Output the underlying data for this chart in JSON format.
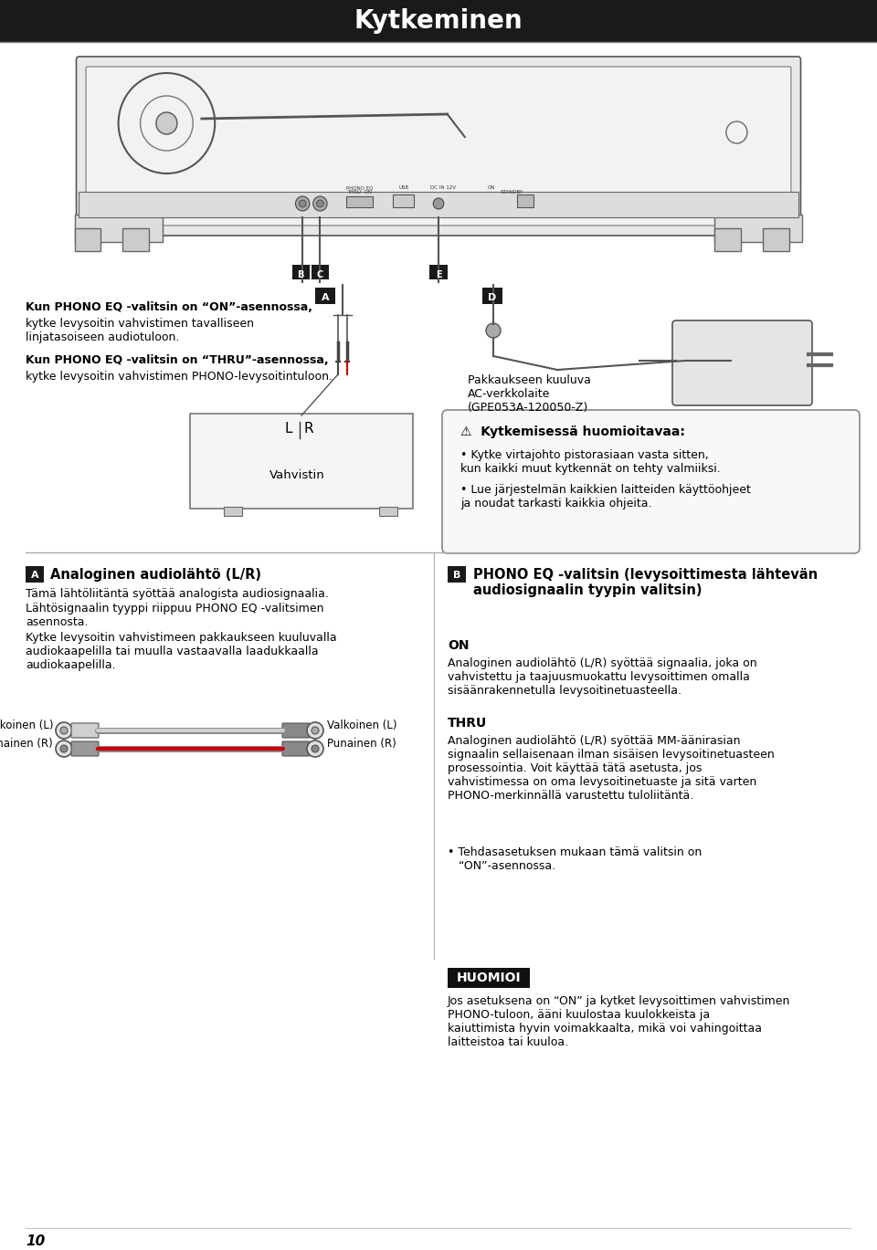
{
  "title": "Kytkeminen",
  "title_bg": "#1a1a1a",
  "title_color": "#ffffff",
  "title_fontsize": 20,
  "page_bg": "#ffffff",
  "page_number": "10",
  "text_on_bold": "Kun PHONO EQ -valitsin on “ON”-asennossa,",
  "text_on_normal": "kytke levysoitin vahvistimen tavalliseen\nlinjatasoiseen audiotuloon.",
  "text_thru_bold": "Kun PHONO EQ -valitsin on “THRU”-asennossa,",
  "text_thru_normal": "kytke levysoitin vahvistimen PHONO-levysoitintuloon.",
  "ac_text": "Pakkaukseen kuuluva\nAC-verkkolaite\n(GPE053A-120050-Z)",
  "warning_title": "⚠  Kytkemisessä huomioitavaa:",
  "warning_bullet1": "Kytke virtajohto pistorasiaan vasta sitten,\nkun kaikki muut kytkennät on tehty valmiiksi.",
  "warning_bullet2": "Lue järjestelmän kaikkien laitteiden käyttöohjeet\nja noudat tarkasti kaikkia ohjeita.",
  "vahvistin_label": "Vahvistin",
  "section_A_title": "Analoginen audiolähtö (L/R)",
  "section_A_text1": "Tämä lähtöliitäntä syöttää analogista audiosignaalia.",
  "section_A_text2": "Lähtösignaalin tyyppi riippuu PHONO EQ -valitsimen\nasennosta.",
  "section_A_text3": "Kytke levysoitin vahvistimeen pakkaukseen kuuluvalla\naudiokaapelilla tai muulla vastaavalla laadukkaalla\naudiokaapelilla.",
  "cable_left_white": "Valkoinen (L)",
  "cable_left_red": "Punainen (R)",
  "cable_right_white": "Valkoinen (L)",
  "cable_right_red": "Punainen (R)",
  "section_B_title": "PHONO EQ -valitsin (levysoittimesta lähtevän\naudiosignaalin tyypin valitsin)",
  "section_B_on_title": "ON",
  "section_B_on_text": "Analoginen audiolähtö (L/R) syöttää signaalia, joka on\nvahvistettu ja taajuusmuokattu levysoittimen omalla\nsisäänrakennetulla levysoitinetuasteella.",
  "section_B_thru_title": "THRU",
  "section_B_thru_text": "Analoginen audiolähtö (L/R) syöttää MM-äänirasian\nsignaalin sellaisenaan ilman sisäisen levysoitinetuasteen\nprosessointia. Voit käyttää tätä asetusta, jos\nvahvistimessa on oma levysoitinetuaste ja sitä varten\nPHONO-merkinnällä varustettu tuloliitäntä.",
  "section_B_thru_bullet": "Tehdasasetuksen mukaan tämä valitsin on\n   “ON”-asennossa.",
  "huomio_title": "HUOMIOI",
  "huomio_text": "Jos asetuksena on “ON” ja kytket levysoittimen vahvistimen\nPHONO-tuloon, ääni kuulostaa kuulokkeista ja\nkaiuttimista hyvin voimakkaalta, mikä voi vahingoittaa\nlaitteistoa tai kuuloa.",
  "label_bg": "#1a1a1a",
  "label_fg": "#ffffff",
  "huomio_bg": "#111111",
  "huomio_fg": "#ffffff"
}
